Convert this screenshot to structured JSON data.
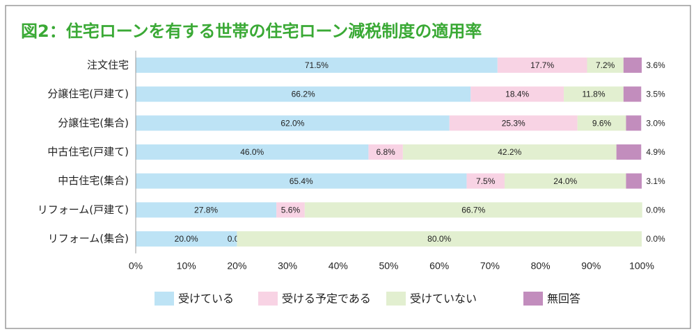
{
  "chart_data": {
    "type": "stacked-bar-horizontal",
    "title": "図2：住宅ローンを有する世帯の住宅ローン減税制度の適用率",
    "categories": [
      "注文住宅",
      "分譲住宅(戸建て)",
      "分譲住宅(集合)",
      "中古住宅(戸建て)",
      "中古住宅(集合)",
      "リフォーム(戸建て)",
      "リフォーム(集合)"
    ],
    "series": [
      {
        "name": "受けている",
        "color": "#bde3f5",
        "values": [
          71.5,
          66.2,
          62.0,
          46.0,
          65.4,
          27.8,
          20.0
        ],
        "value_labels": [
          "71.5%",
          "66.2%",
          "62.0%",
          "46.0%",
          "65.4%",
          "27.8%",
          "20.0%"
        ]
      },
      {
        "name": "受ける予定である",
        "color": "#f8d3e4",
        "values": [
          17.7,
          18.4,
          25.3,
          6.8,
          7.5,
          5.6,
          0.0
        ],
        "value_labels": [
          "17.7%",
          "18.4%",
          "25.3%",
          "6.8%",
          "7.5%",
          "5.6%",
          "0.0%"
        ]
      },
      {
        "name": "受けていない",
        "color": "#e2efd0",
        "values": [
          7.2,
          11.8,
          9.6,
          42.2,
          24.0,
          66.7,
          80.0
        ],
        "value_labels": [
          "7.2%",
          "11.8%",
          "9.6%",
          "42.2%",
          "24.0%",
          "66.7%",
          "80.0%"
        ]
      },
      {
        "name": "無回答",
        "color": "#c28dbd",
        "values": [
          3.6,
          3.5,
          3.0,
          4.9,
          3.1,
          0.0,
          0.0
        ],
        "value_labels": [
          "3.6%",
          "3.5%",
          "3.0%",
          "4.9%",
          "3.1%",
          "0.0%",
          "0.0%"
        ]
      }
    ],
    "xlim": [
      0,
      100
    ],
    "xticks": [
      {
        "value": 0,
        "label": "0%"
      },
      {
        "value": 10,
        "label": "10%"
      },
      {
        "value": 20,
        "label": "20%"
      },
      {
        "value": 30,
        "label": "30%"
      },
      {
        "value": 40,
        "label": "40%"
      },
      {
        "value": 50,
        "label": "50%"
      },
      {
        "value": 60,
        "label": "60%"
      },
      {
        "value": 70,
        "label": "70%"
      },
      {
        "value": 80,
        "label": "80%"
      },
      {
        "value": 90,
        "label": "90%"
      },
      {
        "value": 100,
        "label": "100%"
      }
    ]
  }
}
